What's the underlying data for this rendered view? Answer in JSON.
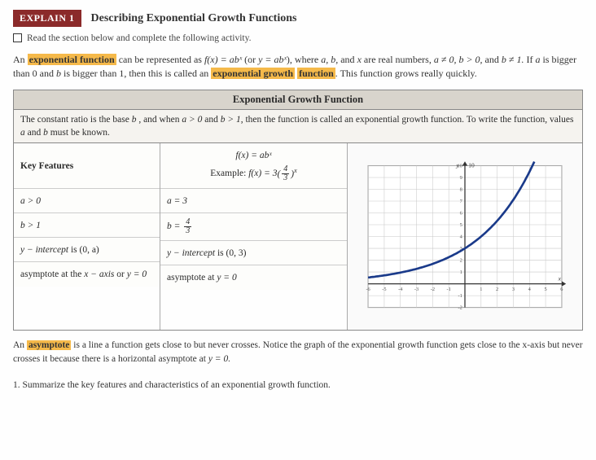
{
  "header": {
    "badge": "EXPLAIN 1",
    "title": "Describing Exponential Growth Functions",
    "subtitle": "Read the section below and complete the following activity."
  },
  "intro": {
    "pre1": "An ",
    "h1": "exponential function",
    "post1": " can be represented as ",
    "formula1": "f(x) = abˣ",
    "mid1": " (or ",
    "formula2": "y = abˣ",
    "mid2": "), where ",
    "vars": "a, b,",
    "post2": " and ",
    "xvar": "x",
    "post3": " are real numbers, ",
    "cond": "a ≠ 0, b > 0,",
    "post4": " and ",
    "cond2": "b ≠ 1.",
    "post5": " If ",
    "avar": "a",
    "post6": " is bigger than 0 and ",
    "bvar": "b",
    "post7": " is bigger than 1, then this is called an ",
    "h2": "exponential growth",
    "h3": "function",
    "post8": ". This function grows really quickly."
  },
  "box": {
    "title": "Exponential Growth Function",
    "intro_a": "The constant ratio is the base ",
    "intro_b": "b",
    "intro_c": " , and when ",
    "intro_d": "a > 0",
    "intro_e": " and ",
    "intro_f": "b > 1",
    "intro_g": ", then the function is called an exponential growth function. To write the function, values ",
    "intro_h": "a",
    "intro_i": " and ",
    "intro_j": "b",
    "intro_k": " must be known.",
    "left": {
      "head": "Key Features",
      "r1": "a > 0",
      "r2": "b > 1",
      "r3a": "y − intercept",
      "r3b": " is (0, a)",
      "r4a": "asymptote at the ",
      "r4b": "x − axis",
      "r4c": " or ",
      "r4d": "y = 0"
    },
    "mid": {
      "head_f": "f(x) = abˣ",
      "head_ex": "Example: ",
      "head_ex2": "f(x) = 3",
      "r1": "a = 3",
      "r2a": "b = ",
      "r3a": "y − intercept",
      "r3b": " is (0, 3)",
      "r4a": "asymptote at ",
      "r4b": "y = 0"
    }
  },
  "asym": {
    "pre": "An ",
    "h": "asymptote",
    "post": " is a line a function gets close to but never crosses. Notice the graph of the exponential growth function gets close to the x-axis but never crosses it because there is a horizontal asymptote at ",
    "eq": "y = 0."
  },
  "question": {
    "num": "1.",
    "text": " Summarize the key features and characteristics of an exponential growth function."
  },
  "graph": {
    "xmin": -6,
    "xmax": 6,
    "ymin": -2,
    "ymax": 10,
    "grid_color": "#c8c8c8",
    "axis_color": "#333333",
    "curve_color": "#1a3a8a",
    "curve_width": 2.5,
    "bg": "#ffffff",
    "a": 3,
    "b": 1.3333,
    "ylabels": [
      -2,
      -1,
      0,
      1,
      2,
      3,
      4,
      5,
      6,
      7,
      8,
      9,
      10
    ],
    "xlabels": [
      -6,
      -5,
      -4,
      -3,
      -2,
      -1,
      0,
      1,
      2,
      3,
      4,
      5,
      6
    ]
  }
}
